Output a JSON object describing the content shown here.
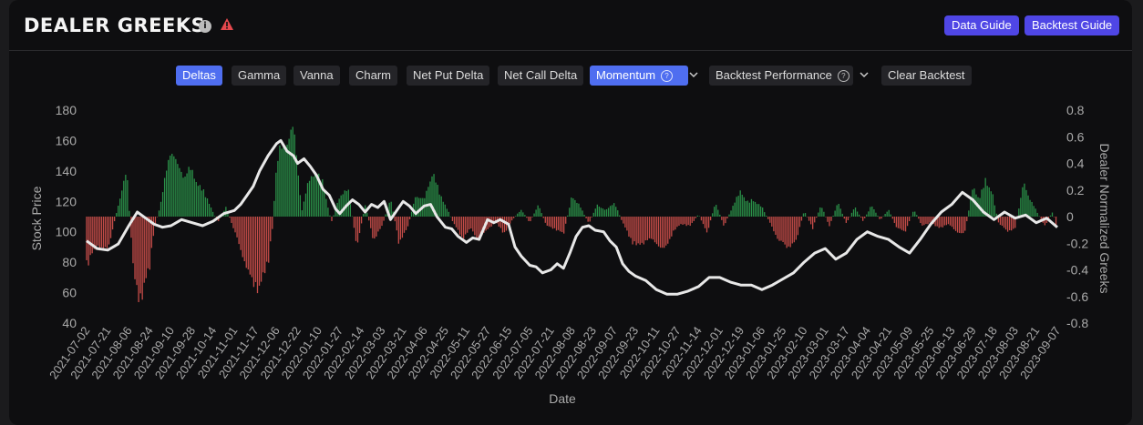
{
  "header": {
    "title": "DEALER GREEKS",
    "data_guide_label": "Data Guide",
    "backtest_guide_label": "Backtest Guide",
    "accent": "#4f46e5"
  },
  "toolbar": {
    "deltas": "Deltas",
    "gamma": "Gamma",
    "vanna": "Vanna",
    "charm": "Charm",
    "net_put_delta": "Net Put Delta",
    "net_call_delta": "Net Call Delta",
    "momentum": "Momentum",
    "backtest_performance": "Backtest Performance",
    "clear_backtest": "Clear Backtest",
    "active": [
      "Deltas",
      "Momentum"
    ]
  },
  "chart_data": {
    "type": "bar",
    "xlabel": "Date",
    "ylabel_left": "Stock Price",
    "ylabel_right": "Dealer Normalized Greeks",
    "ylim_left": [
      40,
      180
    ],
    "yticks_left": [
      40,
      60,
      80,
      100,
      120,
      140,
      160,
      180
    ],
    "ylim_right": [
      -0.8,
      0.8
    ],
    "yticks_right": [
      "-0.8",
      "-0.6",
      "-0.4",
      "-0.2",
      "0",
      "0.2",
      "0.4",
      "0.6",
      "0.8"
    ],
    "x_tick_labels": [
      "2021-07-02",
      "2021-07-21",
      "2021-08-06",
      "2021-08-24",
      "2021-09-10",
      "2021-09-28",
      "2021-10-14",
      "2021-11-01",
      "2021-11-17",
      "2021-12-06",
      "2021-12-22",
      "2022-01-10",
      "2022-01-27",
      "2022-02-14",
      "2022-03-03",
      "2022-03-21",
      "2022-04-06",
      "2022-04-25",
      "2022-05-11",
      "2022-05-27",
      "2022-06-15",
      "2022-07-05",
      "2022-07-21",
      "2022-08-08",
      "2022-08-23",
      "2022-09-07",
      "2022-09-23",
      "2022-10-11",
      "2022-10-27",
      "2022-11-14",
      "2022-12-01",
      "2022-12-19",
      "2023-01-06",
      "2023-01-25",
      "2023-02-10",
      "2023-03-01",
      "2023-03-17",
      "2023-04-04",
      "2023-04-21",
      "2023-05-09",
      "2023-05-25",
      "2023-06-13",
      "2023-06-29",
      "2023-07-18",
      "2023-08-03",
      "2023-08-21",
      "2023-09-07"
    ],
    "colors": {
      "positive": "#2e9e4f",
      "negative": "#d9534f",
      "price_line": "#e8e8e8"
    },
    "series": [
      {
        "name": "Stock Price",
        "kind": "line",
        "axis": "left",
        "points": [
          [
            0,
            94
          ],
          [
            0.5,
            89
          ],
          [
            1,
            88
          ],
          [
            1.5,
            92
          ],
          [
            2,
            104
          ],
          [
            2.4,
            113
          ],
          [
            2.8,
            109
          ],
          [
            3.2,
            105
          ],
          [
            3.6,
            103
          ],
          [
            4,
            104
          ],
          [
            4.5,
            108
          ],
          [
            5,
            106
          ],
          [
            5.5,
            104
          ],
          [
            6,
            107
          ],
          [
            6.5,
            112
          ],
          [
            7,
            114
          ],
          [
            7.3,
            118
          ],
          [
            7.6,
            124
          ],
          [
            7.9,
            130
          ],
          [
            8.2,
            140
          ],
          [
            8.6,
            150
          ],
          [
            9,
            158
          ],
          [
            9.2,
            160
          ],
          [
            9.5,
            153
          ],
          [
            9.8,
            150
          ],
          [
            10,
            145
          ],
          [
            10.3,
            148
          ],
          [
            10.6,
            143
          ],
          [
            10.9,
            137
          ],
          [
            11.2,
            128
          ],
          [
            11.5,
            124
          ],
          [
            11.8,
            115
          ],
          [
            12,
            112
          ],
          [
            12.3,
            117
          ],
          [
            12.6,
            121
          ],
          [
            12.9,
            118
          ],
          [
            13.2,
            113
          ],
          [
            13.5,
            118
          ],
          [
            13.8,
            116
          ],
          [
            14.1,
            120
          ],
          [
            14.4,
            108
          ],
          [
            14.7,
            114
          ],
          [
            15,
            120
          ],
          [
            15.3,
            117
          ],
          [
            15.6,
            112
          ],
          [
            16,
            117
          ],
          [
            16.3,
            118
          ],
          [
            16.6,
            110
          ],
          [
            17,
            103
          ],
          [
            17.3,
            102
          ],
          [
            17.6,
            97
          ],
          [
            18,
            93
          ],
          [
            18.3,
            96
          ],
          [
            18.6,
            95
          ],
          [
            19,
            108
          ],
          [
            19.3,
            106
          ],
          [
            19.6,
            108
          ],
          [
            20,
            105
          ],
          [
            20.3,
            90
          ],
          [
            20.6,
            84
          ],
          [
            21,
            78
          ],
          [
            21.3,
            77
          ],
          [
            21.6,
            73
          ],
          [
            22,
            75
          ],
          [
            22.3,
            79
          ],
          [
            22.6,
            76
          ],
          [
            22.9,
            86
          ],
          [
            23.2,
            97
          ],
          [
            23.5,
            103
          ],
          [
            23.8,
            104
          ],
          [
            24.1,
            101
          ],
          [
            24.5,
            100
          ],
          [
            24.8,
            94
          ],
          [
            25.1,
            90
          ],
          [
            25.4,
            79
          ],
          [
            25.7,
            74
          ],
          [
            26,
            71
          ],
          [
            26.5,
            68
          ],
          [
            27,
            62
          ],
          [
            27.5,
            59
          ],
          [
            28,
            59
          ],
          [
            28.5,
            61
          ],
          [
            29,
            64
          ],
          [
            29.5,
            70
          ],
          [
            30,
            70
          ],
          [
            30.5,
            67
          ],
          [
            31,
            65
          ],
          [
            31.5,
            65
          ],
          [
            32,
            62
          ],
          [
            32.5,
            65
          ],
          [
            33,
            69
          ],
          [
            33.5,
            73
          ],
          [
            34,
            80
          ],
          [
            34.5,
            86
          ],
          [
            35,
            89
          ],
          [
            35.5,
            82
          ],
          [
            36,
            86
          ],
          [
            36.5,
            95
          ],
          [
            37,
            100
          ],
          [
            37.5,
            97
          ],
          [
            38,
            95
          ],
          [
            38.5,
            90
          ],
          [
            39,
            86
          ],
          [
            39.5,
            95
          ],
          [
            40,
            105
          ],
          [
            40.5,
            113
          ],
          [
            41,
            118
          ],
          [
            41.5,
            126
          ],
          [
            42,
            121
          ],
          [
            42.5,
            113
          ],
          [
            43,
            108
          ],
          [
            43.5,
            113
          ],
          [
            44,
            109
          ],
          [
            44.5,
            111
          ],
          [
            45,
            106
          ],
          [
            45.5,
            109
          ],
          [
            46,
            103
          ]
        ]
      },
      {
        "name": "Deltas",
        "kind": "bar",
        "axis": "right",
        "points": [
          [
            0,
            -0.4
          ],
          [
            0.5,
            -0.25
          ],
          [
            1,
            -0.28
          ],
          [
            1.5,
            0.1
          ],
          [
            1.9,
            0.38
          ],
          [
            2.2,
            -0.42
          ],
          [
            2.4,
            -0.62
          ],
          [
            2.6,
            -0.7
          ],
          [
            2.8,
            -0.55
          ],
          [
            3,
            -0.4
          ],
          [
            3.2,
            -0.1
          ],
          [
            3.5,
            0.1
          ],
          [
            3.8,
            0.4
          ],
          [
            4,
            0.58
          ],
          [
            4.3,
            0.42
          ],
          [
            4.6,
            0.34
          ],
          [
            4.9,
            0.4
          ],
          [
            5.2,
            0.3
          ],
          [
            5.5,
            0.22
          ],
          [
            5.8,
            0.12
          ],
          [
            6.2,
            -0.05
          ],
          [
            6.6,
            0.08
          ],
          [
            7,
            -0.12
          ],
          [
            7.4,
            -0.32
          ],
          [
            7.7,
            -0.5
          ],
          [
            8,
            -0.56
          ],
          [
            8.2,
            -0.62
          ],
          [
            8.4,
            -0.48
          ],
          [
            8.6,
            -0.38
          ],
          [
            8.8,
            -0.1
          ],
          [
            9,
            0.45
          ],
          [
            9.2,
            0.58
          ],
          [
            9.4,
            0.56
          ],
          [
            9.6,
            0.7
          ],
          [
            9.8,
            0.74
          ],
          [
            10,
            0.4
          ],
          [
            10.2,
            0.05
          ],
          [
            10.5,
            0.28
          ],
          [
            10.8,
            0.38
          ],
          [
            11.2,
            0.28
          ],
          [
            11.6,
            -0.05
          ],
          [
            12,
            0.18
          ],
          [
            12.4,
            0.22
          ],
          [
            12.8,
            -0.25
          ],
          [
            13.2,
            0.1
          ],
          [
            13.6,
            -0.2
          ],
          [
            14,
            -0.08
          ],
          [
            14.4,
            0.16
          ],
          [
            14.8,
            -0.22
          ],
          [
            15.2,
            -0.1
          ],
          [
            15.6,
            0.18
          ],
          [
            16,
            0.14
          ],
          [
            16.4,
            0.38
          ],
          [
            16.7,
            0.2
          ],
          [
            17,
            0.1
          ],
          [
            17.4,
            -0.06
          ],
          [
            17.8,
            -0.18
          ],
          [
            18.2,
            -0.1
          ],
          [
            18.6,
            -0.2
          ],
          [
            19,
            -0.1
          ],
          [
            19.4,
            -0.05
          ],
          [
            19.8,
            -0.14
          ],
          [
            20.2,
            -0.02
          ],
          [
            20.6,
            0.06
          ],
          [
            21,
            -0.05
          ],
          [
            21.4,
            0.1
          ],
          [
            21.8,
            -0.08
          ],
          [
            22.2,
            -0.1
          ],
          [
            22.6,
            -0.15
          ],
          [
            23,
            0.18
          ],
          [
            23.4,
            0.08
          ],
          [
            23.8,
            -0.06
          ],
          [
            24.2,
            0.1
          ],
          [
            24.6,
            0.05
          ],
          [
            25,
            0.12
          ],
          [
            25.4,
            -0.05
          ],
          [
            25.8,
            -0.2
          ],
          [
            26.2,
            -0.25
          ],
          [
            26.6,
            -0.18
          ],
          [
            27,
            -0.22
          ],
          [
            27.4,
            -0.28
          ],
          [
            27.8,
            -0.12
          ],
          [
            28.2,
            -0.06
          ],
          [
            28.6,
            -0.08
          ],
          [
            29,
            0.02
          ],
          [
            29.4,
            -0.14
          ],
          [
            29.8,
            0.12
          ],
          [
            30.2,
            -0.08
          ],
          [
            30.6,
            0.08
          ],
          [
            31,
            0.22
          ],
          [
            31.3,
            0.12
          ],
          [
            31.6,
            0.14
          ],
          [
            32,
            0.08
          ],
          [
            32.4,
            -0.06
          ],
          [
            32.8,
            -0.2
          ],
          [
            33.2,
            -0.25
          ],
          [
            33.6,
            -0.22
          ],
          [
            34,
            0.05
          ],
          [
            34.4,
            -0.1
          ],
          [
            34.8,
            0.1
          ],
          [
            35.2,
            -0.08
          ],
          [
            35.6,
            0.12
          ],
          [
            36,
            -0.06
          ],
          [
            36.4,
            0.08
          ],
          [
            36.8,
            -0.04
          ],
          [
            37.2,
            0.1
          ],
          [
            37.6,
            -0.03
          ],
          [
            38,
            0.06
          ],
          [
            38.4,
            -0.1
          ],
          [
            38.8,
            -0.12
          ],
          [
            39.2,
            0.06
          ],
          [
            39.6,
            -0.08
          ],
          [
            40,
            -0.05
          ],
          [
            40.4,
            -0.1
          ],
          [
            40.8,
            -0.06
          ],
          [
            41.2,
            -0.12
          ],
          [
            41.6,
            -0.15
          ],
          [
            42,
            0.25
          ],
          [
            42.3,
            0.15
          ],
          [
            42.6,
            0.3
          ],
          [
            42.9,
            0.22
          ],
          [
            43.2,
            -0.05
          ],
          [
            43.6,
            -0.12
          ],
          [
            44,
            -0.1
          ],
          [
            44.4,
            0.28
          ],
          [
            44.7,
            0.15
          ],
          [
            45,
            0.05
          ],
          [
            45.4,
            -0.08
          ],
          [
            45.8,
            0.05
          ],
          [
            46,
            -0.16
          ]
        ]
      }
    ]
  }
}
